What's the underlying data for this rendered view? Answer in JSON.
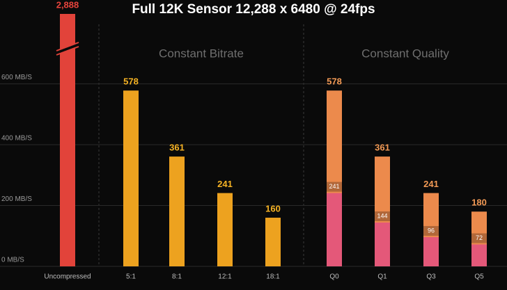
{
  "chart_data": {
    "type": "bar",
    "title": "Full 12K Sensor 12,288 x 6480 @ 24fps",
    "annotations": [
      "Constant Bitrate",
      "Constant Quality"
    ],
    "categories": [
      "Uncompressed",
      "5:1",
      "8:1",
      "12:1",
      "18:1",
      "Q0",
      "Q1",
      "Q3",
      "Q5"
    ],
    "values": [
      2888,
      578,
      361,
      241,
      160,
      578,
      361,
      241,
      180
    ],
    "value_labels": [
      "2,888",
      "578",
      "361",
      "241",
      "160",
      "578",
      "361",
      "241",
      "180"
    ],
    "inner_values": [
      null,
      null,
      null,
      null,
      null,
      241,
      144,
      96,
      72
    ],
    "colors": [
      "#e2433a",
      "#eda21f",
      "#eda21f",
      "#eda21f",
      "#eda21f",
      "#ec8a4c",
      "#ec8a4c",
      "#ec8a4c",
      "#ec8a4c"
    ],
    "label_colors": [
      "#e8443c",
      "#f6b324",
      "#f6b324",
      "#f6b324",
      "#f6b324",
      "#f39a55",
      "#f39a55",
      "#f39a55",
      "#f39a55"
    ],
    "inner_color": "#e45879",
    "ylim": [
      0,
      830
    ],
    "yticks": [
      {
        "value": 0,
        "label": "0 MB/S"
      },
      {
        "value": 200,
        "label": "200 MB/S"
      },
      {
        "value": 400,
        "label": "400 MB/S"
      },
      {
        "value": 600,
        "label": "600 MB/S"
      }
    ],
    "grid": true
  }
}
